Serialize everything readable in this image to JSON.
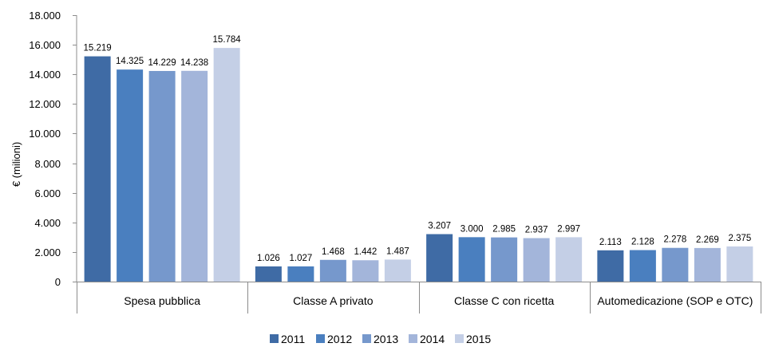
{
  "chart_data": {
    "type": "bar",
    "title": "",
    "xlabel": "",
    "ylabel": "€ (milioni)",
    "ylim": [
      0,
      18000
    ],
    "yticks": [
      0,
      2000,
      4000,
      6000,
      8000,
      10000,
      12000,
      14000,
      16000,
      18000
    ],
    "ytick_labels": [
      "0",
      "2.000",
      "4.000",
      "6.000",
      "8.000",
      "10.000",
      "12.000",
      "14.000",
      "16.000",
      "18.000"
    ],
    "grid": false,
    "legend_position": "bottom",
    "categories": [
      "Spesa pubblica",
      "Classe A privato",
      "Classe C con ricetta",
      "Automedicazione (SOP e OTC)"
    ],
    "series": [
      {
        "name": "2011",
        "color": "#3F6BA5",
        "values": [
          15219,
          1026,
          3207,
          2113
        ],
        "labels": [
          "15.219",
          "1.026",
          "3.207",
          "2.113"
        ]
      },
      {
        "name": "2012",
        "color": "#4A7FBF",
        "values": [
          14325,
          1027,
          3000,
          2128
        ],
        "labels": [
          "14.325",
          "1.027",
          "3.000",
          "2.128"
        ]
      },
      {
        "name": "2013",
        "color": "#7698CC",
        "values": [
          14229,
          1468,
          2985,
          2278
        ],
        "labels": [
          "14.229",
          "1.468",
          "2.985",
          "2.278"
        ]
      },
      {
        "name": "2014",
        "color": "#A3B5DA",
        "values": [
          14238,
          1442,
          2937,
          2269
        ],
        "labels": [
          "14.238",
          "1.442",
          "2.937",
          "2.269"
        ]
      },
      {
        "name": "2015",
        "color": "#C4CFE6",
        "values": [
          15784,
          1487,
          2997,
          2375
        ],
        "labels": [
          "15.784",
          "1.487",
          "2.997",
          "2.375"
        ]
      }
    ]
  }
}
